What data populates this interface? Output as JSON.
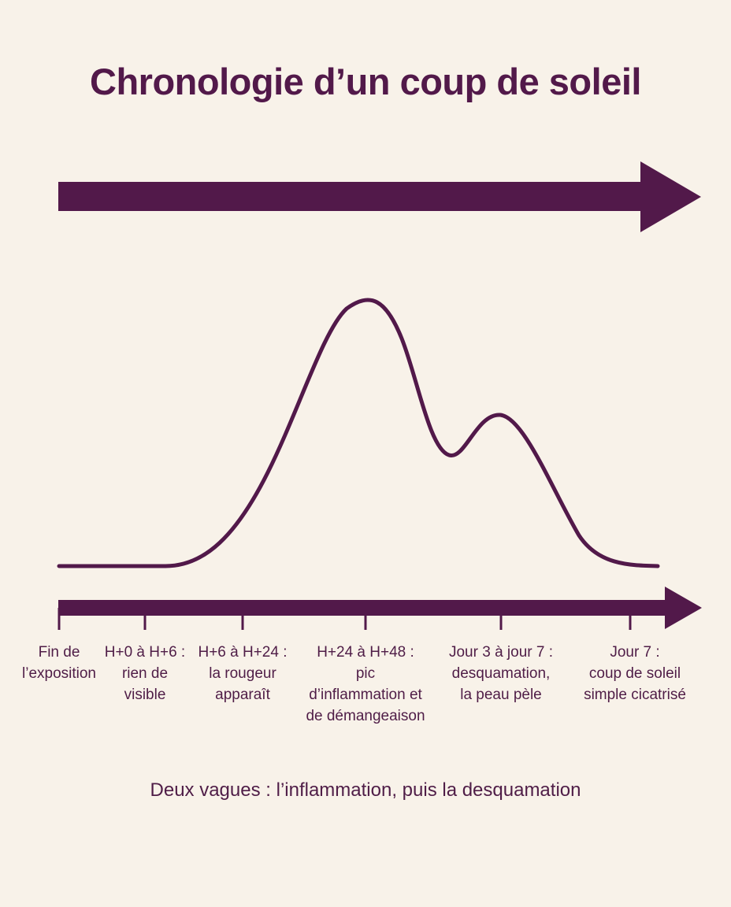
{
  "title": "Chronologie d’un coup de soleil",
  "timeline": [
    {
      "lines": [
        "Fin de",
        "l’exposition"
      ]
    },
    {
      "lines": [
        "H+0 à H+6 :",
        "rien de",
        "visible"
      ]
    },
    {
      "lines": [
        "H+6 à H+24 :",
        "la rougeur",
        "apparaît"
      ]
    },
    {
      "lines": [
        "H+24 à H+48 :",
        "pic",
        "d’inflammation et",
        "de démangeaison"
      ]
    },
    {
      "lines": [
        "Jour 3 à jour 7 :",
        "desquamation,",
        "la peau pèle"
      ]
    },
    {
      "lines": [
        "Jour 7 :",
        "coup de soleil",
        "simple cicatrisé"
      ]
    }
  ],
  "caption": "Deux vagues : l’inflammation, puis la desquamation",
  "colors": {
    "primary": "#52194a",
    "background": "#f8f2e9"
  }
}
